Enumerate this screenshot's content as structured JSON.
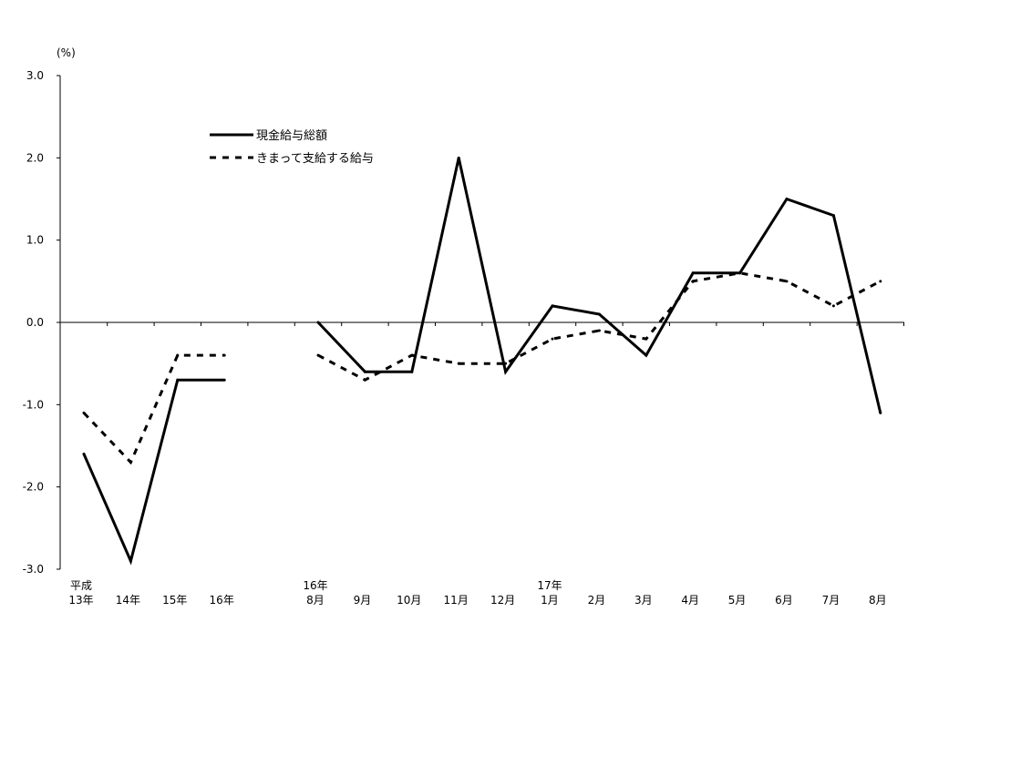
{
  "chart_data": {
    "type": "line",
    "ylabel": "(%)",
    "ylim": [
      -3.0,
      3.0
    ],
    "yticks": [
      -3.0,
      -2.0,
      -1.0,
      0.0,
      1.0,
      2.0,
      3.0
    ],
    "ytick_labels": [
      "-3.0",
      "-2.0",
      "-1.0",
      "0.0",
      "1.0",
      "2.0",
      "3.0"
    ],
    "grid": false,
    "legend_position": "top-left",
    "categories": [
      {
        "top": "平成",
        "bottom": "13年"
      },
      {
        "top": "",
        "bottom": "14年"
      },
      {
        "top": "",
        "bottom": "15年"
      },
      {
        "top": "",
        "bottom": "16年"
      },
      {
        "top": "",
        "bottom": ""
      },
      {
        "top": "16年",
        "bottom": "8月"
      },
      {
        "top": "",
        "bottom": "9月"
      },
      {
        "top": "",
        "bottom": "10月"
      },
      {
        "top": "",
        "bottom": "11月"
      },
      {
        "top": "",
        "bottom": "12月"
      },
      {
        "top": "17年",
        "bottom": "1月"
      },
      {
        "top": "",
        "bottom": "2月"
      },
      {
        "top": "",
        "bottom": "3月"
      },
      {
        "top": "",
        "bottom": "4月"
      },
      {
        "top": "",
        "bottom": "5月"
      },
      {
        "top": "",
        "bottom": "6月"
      },
      {
        "top": "",
        "bottom": "7月"
      },
      {
        "top": "",
        "bottom": "8月"
      }
    ],
    "series": [
      {
        "name": "現金給与総額",
        "style": "solid",
        "color": "#000000",
        "values": [
          -1.6,
          -2.9,
          -0.7,
          -0.7,
          null,
          0.0,
          -0.6,
          -0.6,
          2.0,
          -0.6,
          0.2,
          0.1,
          -0.4,
          0.6,
          0.6,
          1.5,
          1.3,
          -1.1
        ]
      },
      {
        "name": "きまって支給する給与",
        "style": "dashed",
        "color": "#000000",
        "values": [
          -1.1,
          -1.7,
          -0.4,
          -0.4,
          null,
          -0.4,
          -0.7,
          -0.4,
          -0.5,
          -0.5,
          -0.2,
          -0.1,
          -0.2,
          0.5,
          0.6,
          0.5,
          0.2,
          0.5
        ]
      }
    ]
  }
}
